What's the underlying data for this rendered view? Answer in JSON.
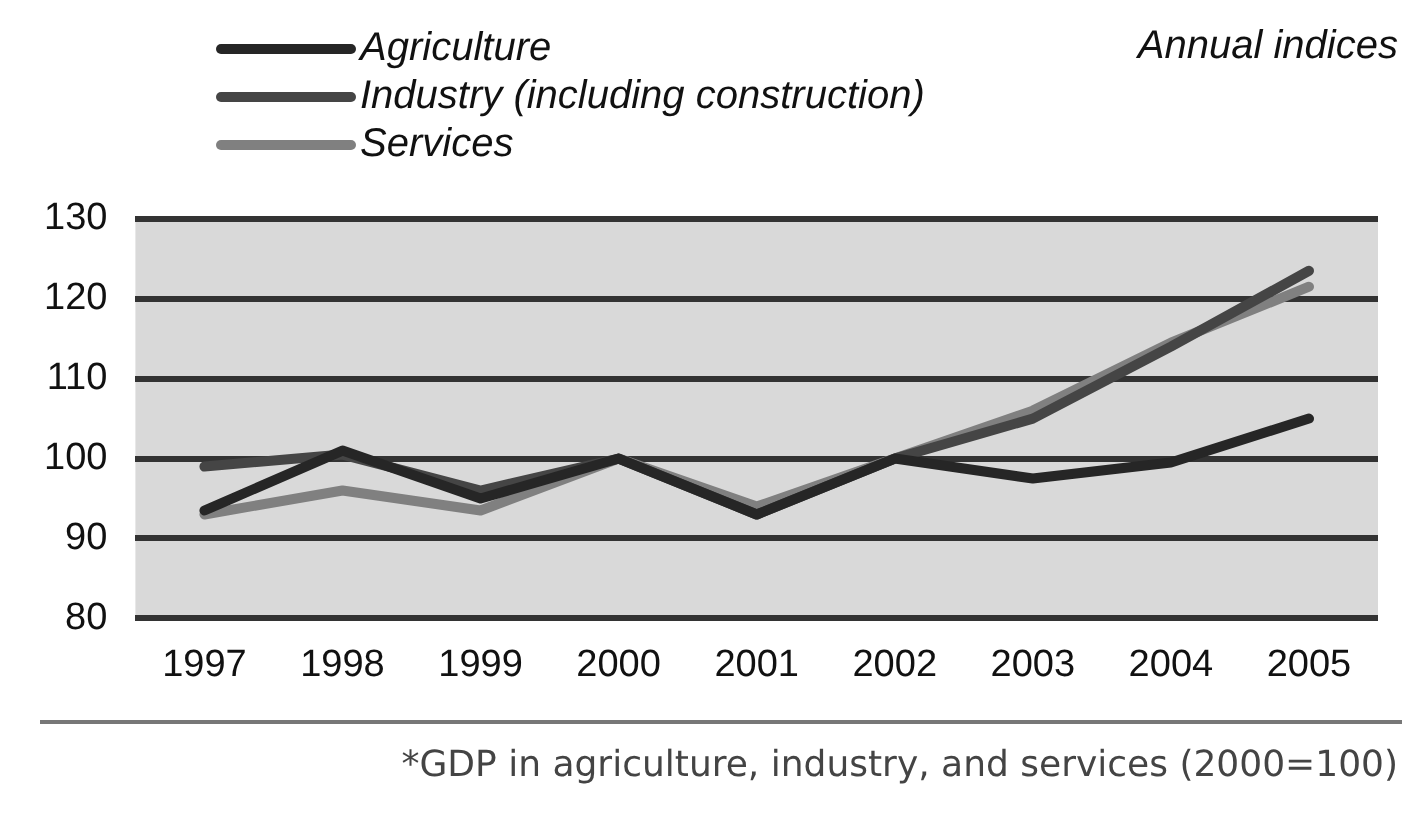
{
  "chart_data": {
    "type": "line",
    "subtitle": "Annual indices",
    "categories": [
      "1997",
      "1998",
      "1999",
      "2000",
      "2001",
      "2002",
      "2003",
      "2004",
      "2005"
    ],
    "series": [
      {
        "name": "Agriculture",
        "color": "#262626",
        "values": [
          93.5,
          101,
          95,
          100,
          93,
          100,
          97.5,
          99.5,
          105
        ]
      },
      {
        "name": "Industry (including construction)",
        "color": "#454545",
        "values": [
          99,
          100.5,
          96,
          100,
          93,
          100,
          105,
          114,
          123.5
        ]
      },
      {
        "name": "Services",
        "color": "#808080",
        "values": [
          93,
          96,
          93.5,
          100,
          94,
          100,
          106,
          114.5,
          121.5
        ]
      }
    ],
    "ylim": [
      80,
      130
    ],
    "yticks": [
      80,
      90,
      100,
      110,
      120,
      130
    ],
    "grid": "y",
    "legend": "top left",
    "marker": "none",
    "line_style": "solid",
    "annotations": [
      "*GDP in agriculture, industry, and services (2000=100)"
    ]
  }
}
